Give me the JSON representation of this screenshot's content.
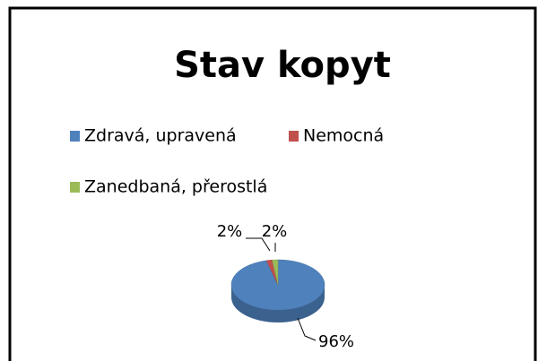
{
  "chart_data": {
    "type": "pie",
    "title": "Stav kopyt",
    "categories": [
      "Zdravá, upravená",
      "Nemocná",
      "Zanedbaná, přerostlá"
    ],
    "values": [
      96,
      2,
      2
    ],
    "value_labels": [
      "96%",
      "2%",
      "2%"
    ],
    "colors": [
      "#4f81bd",
      "#c0504d",
      "#9bbb59"
    ],
    "legend": "top"
  }
}
